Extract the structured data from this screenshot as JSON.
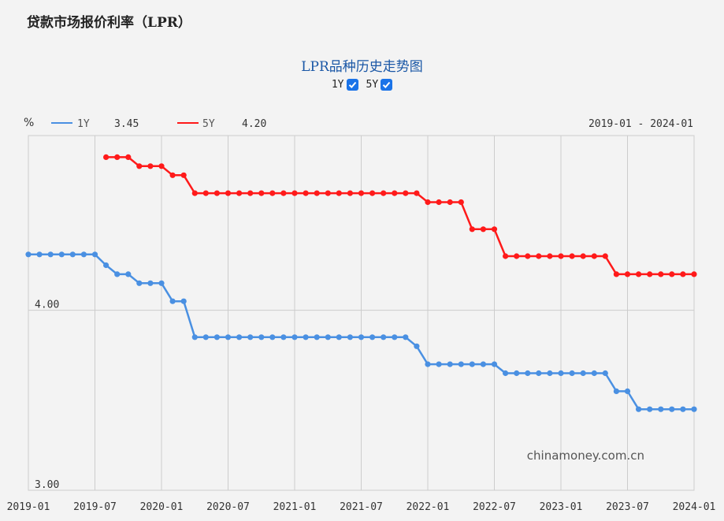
{
  "page": {
    "title": "贷款市场报价利率（LPR）"
  },
  "chart_header": {
    "title": "LPR品种历史走势图",
    "unit": "%",
    "date_range": "2019-01 - 2024-01",
    "watermark": "chinamoney.com.cn"
  },
  "toggles": [
    {
      "label": "1Y",
      "checked": true
    },
    {
      "label": "5Y",
      "checked": true
    }
  ],
  "legend": [
    {
      "name": "1Y",
      "value": "3.45",
      "color": "#4a90e2"
    },
    {
      "name": "5Y",
      "value": "4.20",
      "color": "#ff1a1a"
    }
  ],
  "chart_data": {
    "type": "line",
    "title": "LPR品种历史走势图",
    "ylabel": "%",
    "x_ticks": [
      "2019-01",
      "2019-07",
      "2020-01",
      "2020-07",
      "2021-01",
      "2021-07",
      "2022-01",
      "2022-07",
      "2023-01",
      "2023-07",
      "2024-01"
    ],
    "y_ticks": [
      "4.00",
      "3.00"
    ],
    "ylim": [
      3.0,
      4.97
    ],
    "grid": true,
    "x_start": "2019-01",
    "series": [
      {
        "name": "1Y",
        "color": "#4a90e2",
        "x": [
          "2019-01",
          "2019-02",
          "2019-03",
          "2019-04",
          "2019-05",
          "2019-06",
          "2019-07",
          "2019-08",
          "2019-09",
          "2019-10",
          "2019-11",
          "2019-12",
          "2020-01",
          "2020-02",
          "2020-03",
          "2020-04",
          "2020-05",
          "2020-06",
          "2020-07",
          "2020-08",
          "2020-09",
          "2020-10",
          "2020-11",
          "2020-12",
          "2021-01",
          "2021-02",
          "2021-03",
          "2021-04",
          "2021-05",
          "2021-06",
          "2021-07",
          "2021-08",
          "2021-09",
          "2021-10",
          "2021-11",
          "2021-12",
          "2022-01",
          "2022-02",
          "2022-03",
          "2022-04",
          "2022-05",
          "2022-06",
          "2022-07",
          "2022-08",
          "2022-09",
          "2022-10",
          "2022-11",
          "2022-12",
          "2023-01",
          "2023-02",
          "2023-03",
          "2023-04",
          "2023-05",
          "2023-06",
          "2023-07",
          "2023-08",
          "2023-09",
          "2023-10",
          "2023-11",
          "2023-12",
          "2024-01"
        ],
        "values": [
          4.31,
          4.31,
          4.31,
          4.31,
          4.31,
          4.31,
          4.31,
          4.25,
          4.2,
          4.2,
          4.15,
          4.15,
          4.15,
          4.05,
          4.05,
          3.85,
          3.85,
          3.85,
          3.85,
          3.85,
          3.85,
          3.85,
          3.85,
          3.85,
          3.85,
          3.85,
          3.85,
          3.85,
          3.85,
          3.85,
          3.85,
          3.85,
          3.85,
          3.85,
          3.85,
          3.8,
          3.7,
          3.7,
          3.7,
          3.7,
          3.7,
          3.7,
          3.7,
          3.65,
          3.65,
          3.65,
          3.65,
          3.65,
          3.65,
          3.65,
          3.65,
          3.65,
          3.65,
          3.55,
          3.55,
          3.45,
          3.45,
          3.45,
          3.45,
          3.45,
          3.45
        ]
      },
      {
        "name": "5Y",
        "color": "#ff1a1a",
        "x": [
          "2019-08",
          "2019-09",
          "2019-10",
          "2019-11",
          "2019-12",
          "2020-01",
          "2020-02",
          "2020-03",
          "2020-04",
          "2020-05",
          "2020-06",
          "2020-07",
          "2020-08",
          "2020-09",
          "2020-10",
          "2020-11",
          "2020-12",
          "2021-01",
          "2021-02",
          "2021-03",
          "2021-04",
          "2021-05",
          "2021-06",
          "2021-07",
          "2021-08",
          "2021-09",
          "2021-10",
          "2021-11",
          "2021-12",
          "2022-01",
          "2022-02",
          "2022-03",
          "2022-04",
          "2022-05",
          "2022-06",
          "2022-07",
          "2022-08",
          "2022-09",
          "2022-10",
          "2022-11",
          "2022-12",
          "2023-01",
          "2023-02",
          "2023-03",
          "2023-04",
          "2023-05",
          "2023-06",
          "2023-07",
          "2023-08",
          "2023-09",
          "2023-10",
          "2023-11",
          "2023-12",
          "2024-01"
        ],
        "values": [
          4.85,
          4.85,
          4.85,
          4.8,
          4.8,
          4.8,
          4.75,
          4.75,
          4.65,
          4.65,
          4.65,
          4.65,
          4.65,
          4.65,
          4.65,
          4.65,
          4.65,
          4.65,
          4.65,
          4.65,
          4.65,
          4.65,
          4.65,
          4.65,
          4.65,
          4.65,
          4.65,
          4.65,
          4.65,
          4.6,
          4.6,
          4.6,
          4.6,
          4.45,
          4.45,
          4.45,
          4.3,
          4.3,
          4.3,
          4.3,
          4.3,
          4.3,
          4.3,
          4.3,
          4.3,
          4.3,
          4.2,
          4.2,
          4.2,
          4.2,
          4.2,
          4.2,
          4.2,
          4.2
        ]
      }
    ]
  }
}
